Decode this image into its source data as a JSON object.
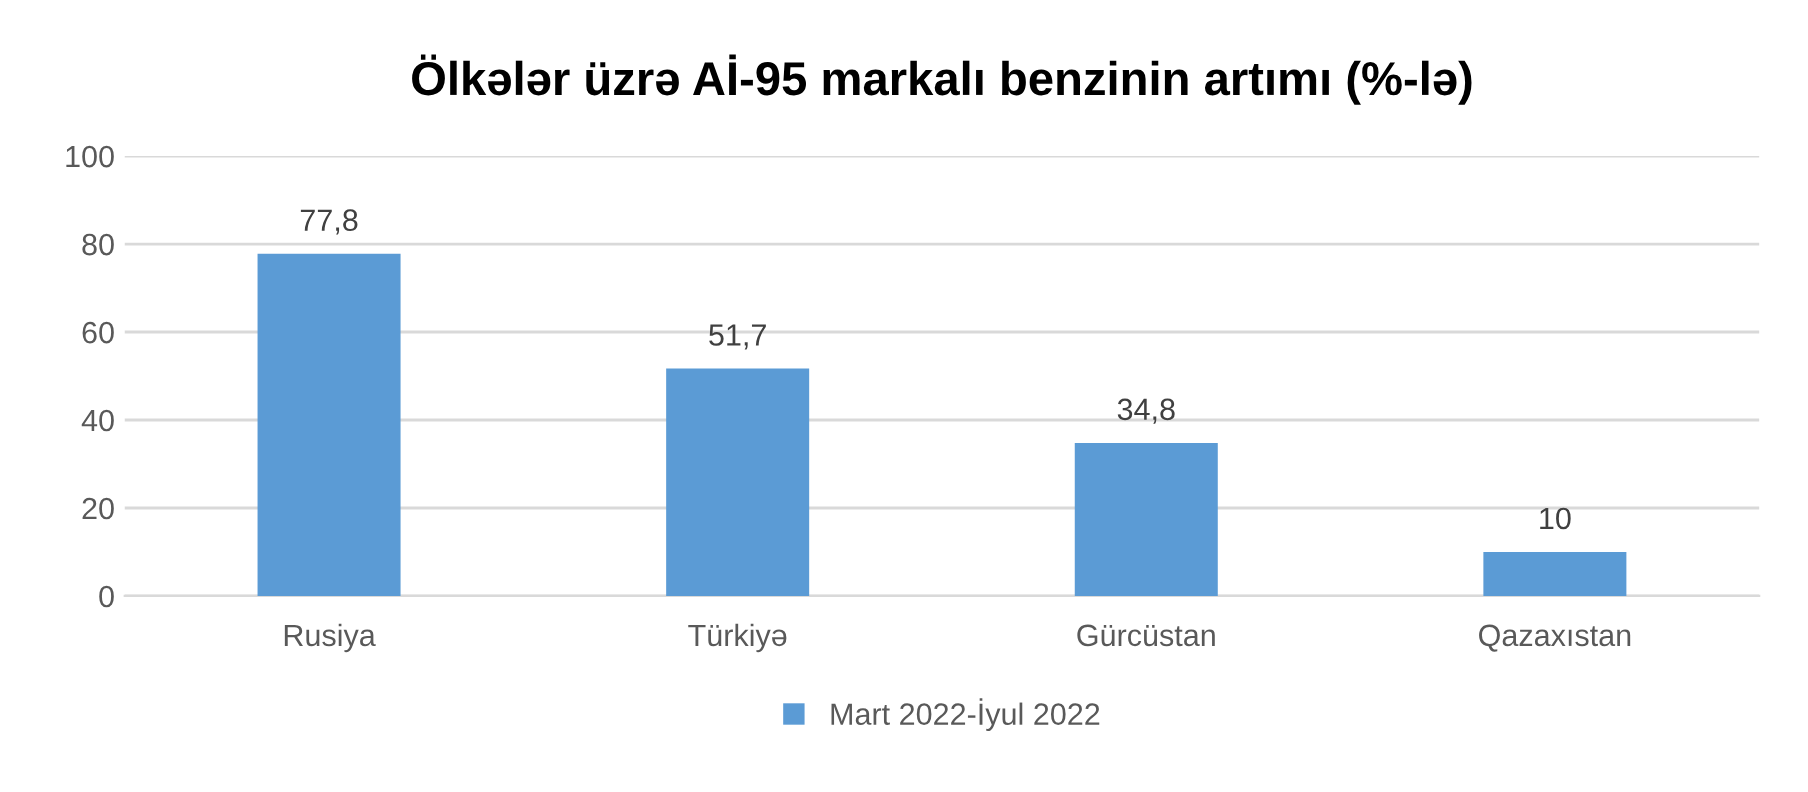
{
  "chart_data": {
    "type": "bar",
    "title": "Ölkələr üzrə Aİ-95 markalı benzinin artımı (%-lə)",
    "categories": [
      "Rusiya",
      "Türkiyə",
      "Gürcüstan",
      "Qazaxıstan"
    ],
    "series": [
      {
        "name": "Mart 2022-İyul 2022",
        "color": "#5b9bd5",
        "values": [
          77.8,
          51.7,
          34.8,
          10
        ],
        "value_labels": [
          "77,8",
          "51,7",
          "34,8",
          "10"
        ]
      }
    ],
    "ylim": [
      0,
      100
    ],
    "yticks": [
      0,
      20,
      40,
      60,
      80,
      100
    ],
    "grid": "y",
    "legend": "bottom"
  }
}
